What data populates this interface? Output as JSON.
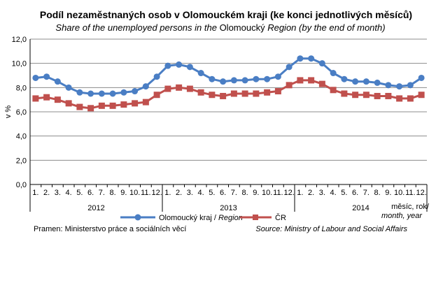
{
  "chart_data": {
    "type": "line",
    "title": "Podíl nezaměstnaných osob v Olomouckém kraji (ke konci jednotlivých měsíců)",
    "subtitle": {
      "prefix": "Share of the unemployed persons in the ",
      "region": "Olomoucký",
      "suffix": " Region (by the end of month)"
    },
    "ylabel": "v %",
    "ylim": [
      0,
      12
    ],
    "yticks": [
      "0,0",
      "2,0",
      "4,0",
      "6,0",
      "8,0",
      "10,0",
      "12,0"
    ],
    "grid": true,
    "categories": [
      "1.",
      "2.",
      "3.",
      "4.",
      "5.",
      "6.",
      "7.",
      "8.",
      "9.",
      "10.",
      "11.",
      "12.",
      "1.",
      "2.",
      "3.",
      "4.",
      "5.",
      "6.",
      "7.",
      "8.",
      "9.",
      "10.",
      "11.",
      "12.",
      "1.",
      "2.",
      "3.",
      "4.",
      "5.",
      "6.",
      "7.",
      "8.",
      "9.",
      "10.",
      "11.",
      "12."
    ],
    "years": [
      "2012",
      "2013",
      "2014"
    ],
    "axis_note": {
      "line1": "měsíc, rok/",
      "line2": "month, year"
    },
    "legend_position": "bottom",
    "series": [
      {
        "name": "Olomoucký kraj / Region",
        "legend_normal": "Olomoucký kraj / ",
        "legend_italic": "Region",
        "color": "#4a7ec4",
        "marker": "circle",
        "values": [
          8.8,
          8.9,
          8.5,
          8.0,
          7.6,
          7.5,
          7.5,
          7.5,
          7.6,
          7.7,
          8.1,
          8.9,
          9.8,
          9.9,
          9.7,
          9.2,
          8.7,
          8.5,
          8.6,
          8.6,
          8.7,
          8.7,
          8.9,
          9.7,
          10.4,
          10.4,
          10.0,
          9.2,
          8.7,
          8.5,
          8.5,
          8.4,
          8.2,
          8.1,
          8.2,
          8.8
        ]
      },
      {
        "name": "ČR",
        "legend_normal": "ČR",
        "legend_italic": "",
        "color": "#c0504d",
        "marker": "square",
        "values": [
          7.1,
          7.2,
          7.0,
          6.7,
          6.4,
          6.3,
          6.5,
          6.5,
          6.6,
          6.7,
          6.8,
          7.4,
          7.9,
          8.0,
          7.9,
          7.6,
          7.4,
          7.3,
          7.5,
          7.5,
          7.5,
          7.6,
          7.7,
          8.2,
          8.6,
          8.6,
          8.3,
          7.8,
          7.5,
          7.4,
          7.4,
          7.3,
          7.3,
          7.1,
          7.1,
          7.4
        ]
      }
    ]
  },
  "footer": {
    "left": "Pramen: Ministerstvo práce a sociálních věcí",
    "right": "Source: Ministry of Labour and Social Affairs"
  }
}
